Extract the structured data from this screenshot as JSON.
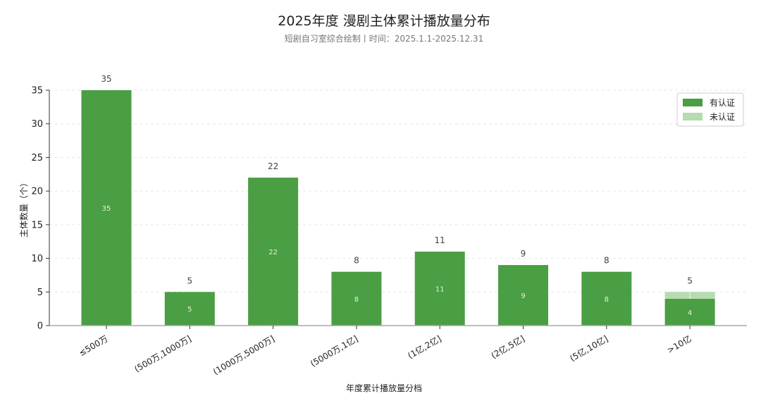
{
  "chart_data": {
    "type": "bar",
    "stacked": true,
    "title": "2025年度 漫剧主体累计播放量分布",
    "subtitle": "短剧自习室综合绘制丨时间：2025.1.1-2025.12.31",
    "xlabel": "年度累计播放量分档",
    "ylabel": "主体数量（个）",
    "ylim": [
      0,
      35
    ],
    "yticks": [
      0,
      5,
      10,
      15,
      20,
      25,
      30,
      35
    ],
    "grid": "horizontal-dashed",
    "legend_position": "top-right",
    "categories": [
      "≤500万",
      "(500万,1000万]",
      "(1000万,5000万]",
      "(5000万,1亿]",
      "(1亿,2亿]",
      "(2亿,5亿]",
      "(5亿,10亿]",
      ">10亿"
    ],
    "series": [
      {
        "name": "有认证",
        "color": "#4a9e43",
        "values": [
          35,
          5,
          22,
          8,
          11,
          9,
          8,
          4
        ]
      },
      {
        "name": "未认证",
        "color": "#b6dbb0",
        "values": [
          0,
          0,
          0,
          0,
          0,
          0,
          0,
          1
        ]
      }
    ],
    "totals": [
      35,
      5,
      22,
      8,
      11,
      9,
      8,
      5
    ]
  }
}
